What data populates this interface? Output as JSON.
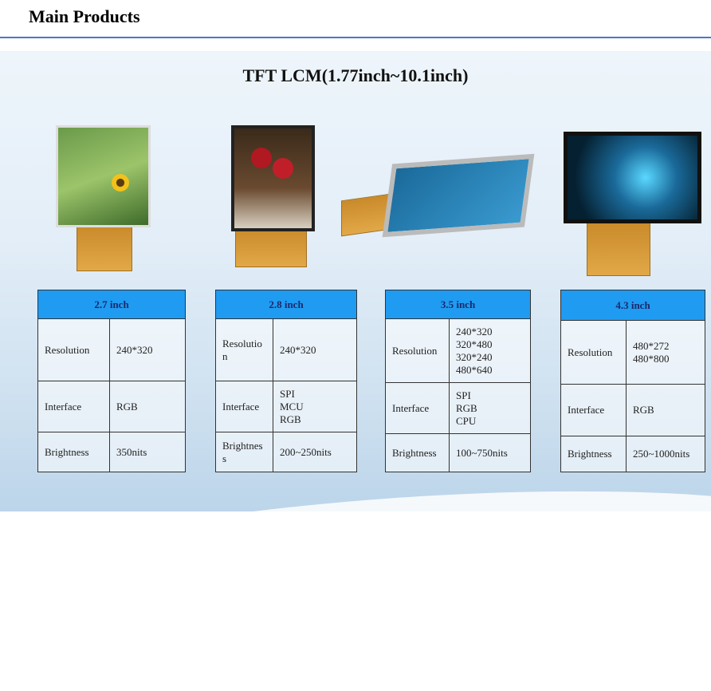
{
  "header": {
    "title": "Main Products"
  },
  "banner": {
    "title": "TFT LCM(1.77inch~10.1inch)"
  },
  "colors": {
    "accent_line": "#4a78c4",
    "table_header": "#1f9bf2"
  },
  "products": [
    {
      "size": "2.7 inch",
      "rows": [
        {
          "label": "Resolution",
          "values": [
            "240*320"
          ]
        },
        {
          "label": "Interface",
          "values": [
            "RGB"
          ]
        },
        {
          "label": "Brightness",
          "values": [
            "350nits"
          ]
        }
      ]
    },
    {
      "size": "2.8 inch",
      "rows": [
        {
          "label": "Resolutio n",
          "values": [
            "240*320"
          ]
        },
        {
          "label": "Interface",
          "values": [
            "SPI",
            "MCU",
            "RGB"
          ]
        },
        {
          "label": "Brightnes s",
          "values": [
            "200~250nits"
          ]
        }
      ]
    },
    {
      "size": "3.5 inch",
      "rows": [
        {
          "label": "Resolution",
          "values": [
            "240*320",
            "320*480",
            "320*240",
            "480*640"
          ]
        },
        {
          "label": "Interface",
          "values": [
            "SPI",
            "RGB",
            "CPU"
          ]
        },
        {
          "label": "Brightness",
          "values": [
            "100~750nits"
          ]
        }
      ]
    },
    {
      "size": "4.3 inch",
      "rows": [
        {
          "label": "Resolution",
          "values": [
            "480*272",
            "480*800"
          ]
        },
        {
          "label": "Interface",
          "values": [
            "RGB"
          ]
        },
        {
          "label": "Brightness",
          "values": [
            "250~1000nits"
          ]
        }
      ]
    }
  ]
}
